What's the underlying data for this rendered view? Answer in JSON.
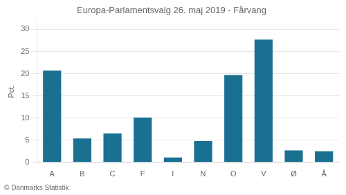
{
  "chart_data": {
    "type": "bar",
    "title": "Europa-Parlamentsvalg 26. maj 2019 - Fårvang",
    "ylabel": "Pct.",
    "footer": "© Danmarks Statistik",
    "categories": [
      "A",
      "B",
      "C",
      "F",
      "I",
      "N",
      "O",
      "V",
      "Ø",
      "Å"
    ],
    "values": [
      20.7,
      5.4,
      6.5,
      10.1,
      1.1,
      4.8,
      19.7,
      27.7,
      2.7,
      2.5
    ],
    "color": "#1a7090",
    "ylim": [
      0,
      32
    ],
    "yticks": [
      0,
      5,
      10,
      15,
      20,
      25,
      30
    ],
    "grid": true
  }
}
